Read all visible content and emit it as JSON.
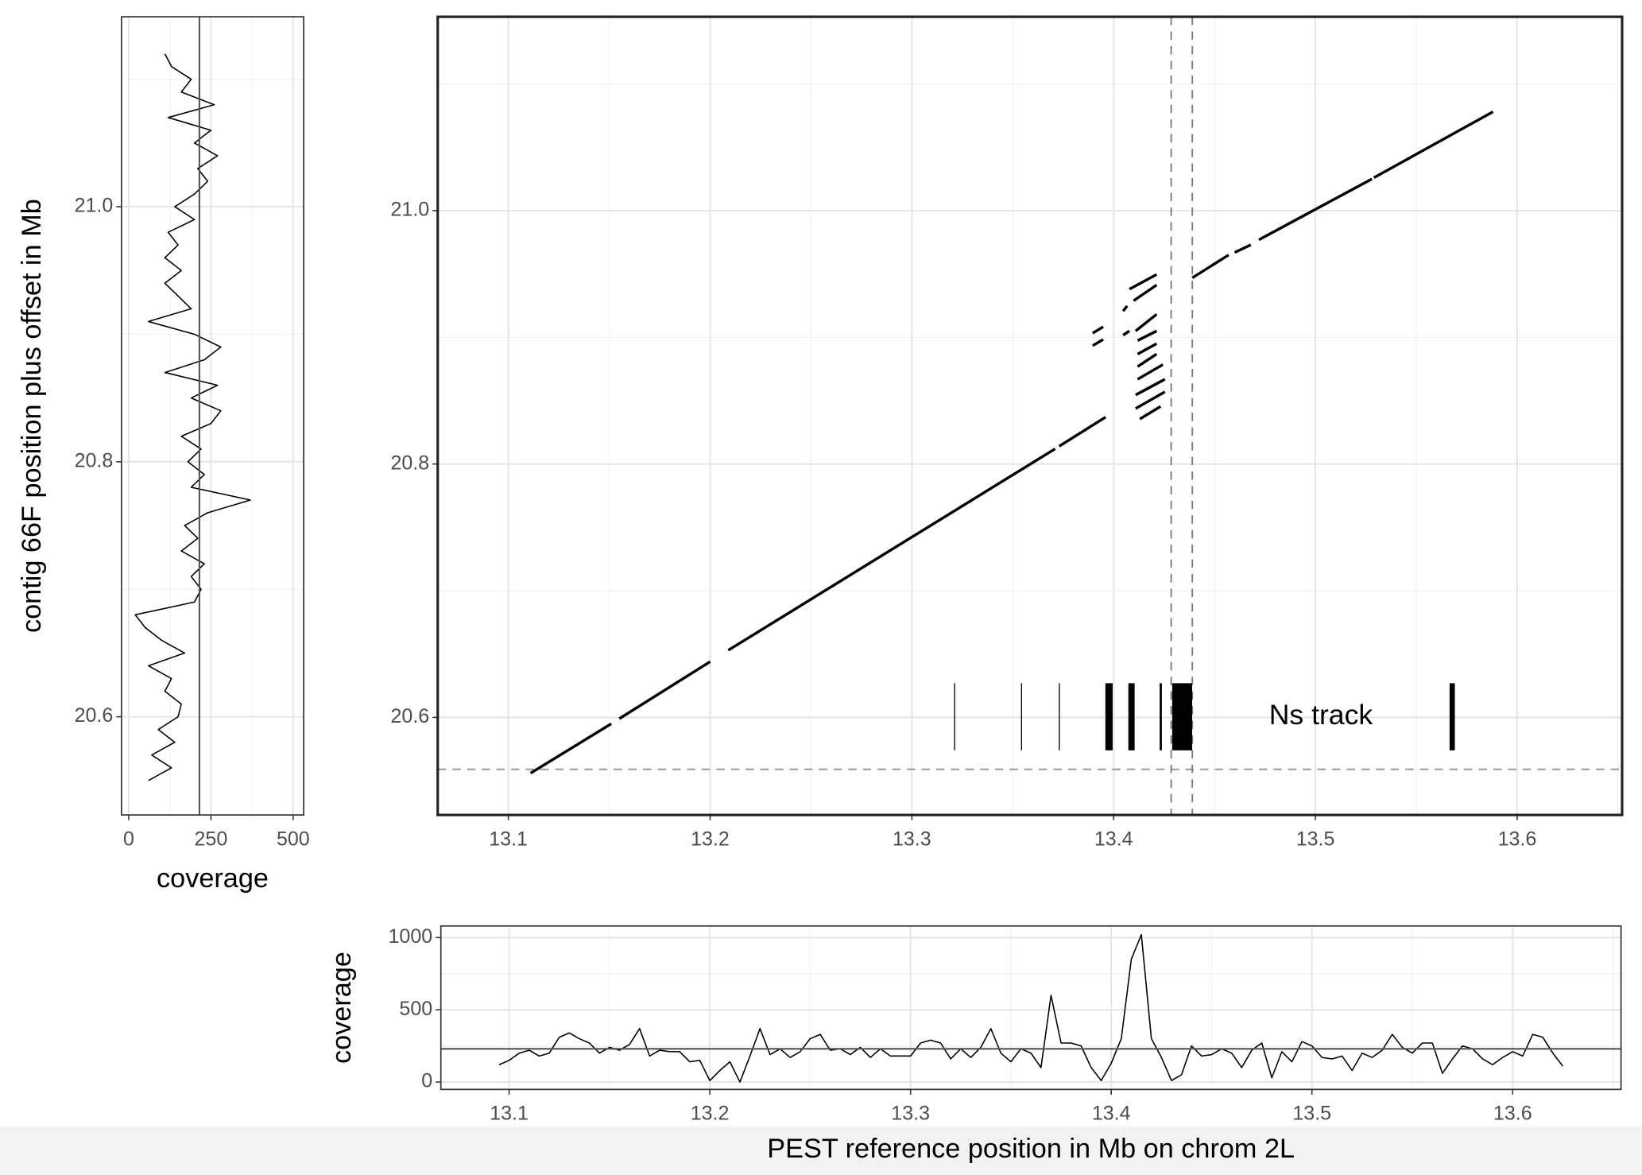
{
  "chart_data": [
    {
      "type": "line",
      "xlabel": "coverage",
      "ylabel": "contig 66F position plus offset in Mb",
      "xlim": [
        -22,
        532
      ],
      "xticks": [
        0,
        250,
        500
      ],
      "ylim": [
        20.523,
        21.149
      ],
      "yticks": [
        20.6,
        20.8,
        {
          "value": 21,
          "label": "21.0"
        }
      ],
      "grid": true,
      "color": "#000000",
      "ref_x": 215,
      "positions": [
        20.55,
        20.56,
        20.57,
        20.58,
        20.59,
        20.6,
        20.61,
        20.62,
        20.63,
        20.64,
        20.65,
        20.66,
        20.67,
        20.68,
        20.69,
        20.7,
        20.71,
        20.72,
        20.73,
        20.74,
        20.75,
        20.76,
        20.77,
        20.78,
        20.79,
        20.8,
        20.81,
        20.82,
        20.83,
        20.84,
        20.85,
        20.86,
        20.87,
        20.88,
        20.89,
        20.9,
        20.91,
        20.92,
        20.93,
        20.94,
        20.95,
        20.96,
        20.97,
        20.98,
        20.99,
        21.0,
        21.01,
        21.02,
        21.03,
        21.04,
        21.05,
        21.06,
        21.07,
        21.08,
        21.09,
        21.1,
        21.11,
        21.12
      ],
      "values": [
        60,
        130,
        70,
        140,
        90,
        150,
        160,
        110,
        130,
        60,
        170,
        100,
        50,
        20,
        200,
        220,
        190,
        230,
        160,
        210,
        170,
        240,
        370,
        190,
        230,
        180,
        220,
        160,
        250,
        280,
        190,
        270,
        110,
        230,
        280,
        200,
        60,
        190,
        150,
        110,
        160,
        110,
        150,
        120,
        200,
        140,
        200,
        240,
        210,
        270,
        200,
        250,
        120,
        260,
        160,
        190,
        130,
        110
      ]
    },
    {
      "type": "segments",
      "xlim": [
        13.065,
        13.652
      ],
      "xticks": [
        13.1,
        13.2,
        13.3,
        13.4,
        13.5,
        13.6
      ],
      "ylim": [
        20.523,
        21.153
      ],
      "yticks": [
        20.6,
        20.8,
        {
          "value": 21,
          "label": "21.0"
        }
      ],
      "grid": true,
      "color": "#000000",
      "ref_x": [
        13.4285,
        13.439
      ],
      "ref_y": [
        20.559
      ],
      "segments": [
        {
          "x": [
            13.111,
            13.151
          ],
          "y": [
            20.556,
            20.595
          ]
        },
        {
          "x": [
            13.155,
            13.2
          ],
          "y": [
            20.599,
            20.644
          ]
        },
        {
          "x": [
            13.209,
            13.371
          ],
          "y": [
            20.653,
            20.812
          ]
        },
        {
          "x": [
            13.373,
            13.396
          ],
          "y": [
            20.814,
            20.837
          ]
        },
        {
          "x": [
            13.3896,
            13.3948
          ],
          "y": [
            20.9033,
            20.9083
          ]
        },
        {
          "x": [
            13.3896,
            13.3948
          ],
          "y": [
            20.8934,
            20.8983
          ]
        },
        {
          "x": [
            13.4047,
            13.4067
          ],
          "y": [
            20.9207,
            20.9248
          ]
        },
        {
          "x": [
            13.4078,
            13.4213
          ],
          "y": [
            20.938,
            20.9496
          ]
        },
        {
          "x": [
            13.4099,
            13.4213
          ],
          "y": [
            20.9289,
            20.9413
          ]
        },
        {
          "x": [
            13.4047,
            13.4078
          ],
          "y": [
            20.9017,
            20.905
          ]
        },
        {
          "x": [
            13.4109,
            13.4213
          ],
          "y": [
            20.905,
            20.9182
          ]
        },
        {
          "x": [
            13.4119,
            13.4213
          ],
          "y": [
            20.8975,
            20.905
          ]
        },
        {
          "x": [
            13.4119,
            13.4213
          ],
          "y": [
            20.8868,
            20.895
          ]
        },
        {
          "x": [
            13.4119,
            13.4213
          ],
          "y": [
            20.8769,
            20.8868
          ]
        },
        {
          "x": [
            13.4119,
            13.4244
          ],
          "y": [
            20.8669,
            20.8785
          ]
        },
        {
          "x": [
            13.4109,
            13.4254
          ],
          "y": [
            20.8545,
            20.8669
          ]
        },
        {
          "x": [
            13.4109,
            13.4254
          ],
          "y": [
            20.8438,
            20.857
          ]
        },
        {
          "x": [
            13.413,
            13.4233
          ],
          "y": [
            20.8355,
            20.8455
          ]
        },
        {
          "x": [
            13.439,
            13.457
          ],
          "y": [
            20.947,
            20.965
          ]
        },
        {
          "x": [
            13.46,
            13.468
          ],
          "y": [
            20.967,
            20.973
          ]
        },
        {
          "x": [
            13.472,
            13.528
          ],
          "y": [
            20.977,
            21.025
          ]
        },
        {
          "x": [
            13.529,
            13.588
          ],
          "y": [
            21.026,
            21.078
          ]
        }
      ],
      "ns_track": {
        "label": "Ns track",
        "y": [
          20.574,
          20.627
        ],
        "intervals": [
          [
            13.3209,
            13.3214
          ],
          [
            13.3541,
            13.3546
          ],
          [
            13.3728,
            13.3733
          ],
          [
            13.3959,
            13.3995
          ],
          [
            13.4073,
            13.4104
          ],
          [
            13.4228,
            13.4239
          ],
          [
            13.429,
            13.4389
          ],
          [
            13.5665,
            13.5691
          ]
        ]
      }
    },
    {
      "type": "line",
      "xlabel": "PEST reference position in Mb on chrom 2L",
      "ylabel": "coverage",
      "xlim": [
        13.066,
        13.654
      ],
      "xticks": [
        13.1,
        13.2,
        13.3,
        13.4,
        13.5,
        13.6
      ],
      "ylim": [
        -51,
        1080
      ],
      "yticks": [
        0,
        500,
        1000
      ],
      "grid": true,
      "color": "#000000",
      "ref_y": 230,
      "x": [
        13.095,
        13.1,
        13.105,
        13.11,
        13.115,
        13.12,
        13.125,
        13.13,
        13.135,
        13.14,
        13.145,
        13.15,
        13.155,
        13.16,
        13.165,
        13.17,
        13.175,
        13.18,
        13.185,
        13.19,
        13.195,
        13.2,
        13.205,
        13.21,
        13.215,
        13.22,
        13.225,
        13.23,
        13.235,
        13.24,
        13.245,
        13.25,
        13.255,
        13.26,
        13.265,
        13.27,
        13.275,
        13.28,
        13.285,
        13.29,
        13.295,
        13.3,
        13.305,
        13.31,
        13.315,
        13.32,
        13.325,
        13.33,
        13.335,
        13.34,
        13.345,
        13.35,
        13.355,
        13.36,
        13.365,
        13.37,
        13.375,
        13.38,
        13.385,
        13.39,
        13.395,
        13.4,
        13.405,
        13.41,
        13.415,
        13.42,
        13.425,
        13.43,
        13.435,
        13.44,
        13.445,
        13.45,
        13.455,
        13.46,
        13.465,
        13.47,
        13.475,
        13.48,
        13.485,
        13.49,
        13.495,
        13.5,
        13.505,
        13.51,
        13.515,
        13.52,
        13.525,
        13.53,
        13.535,
        13.54,
        13.545,
        13.55,
        13.555,
        13.56,
        13.565,
        13.57,
        13.575,
        13.58,
        13.585,
        13.59,
        13.595,
        13.6,
        13.605,
        13.61,
        13.615,
        13.62,
        13.625
      ],
      "values": [
        120,
        150,
        200,
        220,
        180,
        200,
        310,
        340,
        300,
        270,
        200,
        240,
        220,
        260,
        370,
        180,
        220,
        210,
        210,
        140,
        150,
        10,
        80,
        140,
        0,
        180,
        370,
        190,
        230,
        170,
        210,
        300,
        330,
        220,
        230,
        190,
        240,
        170,
        230,
        180,
        180,
        180,
        270,
        290,
        270,
        160,
        230,
        170,
        240,
        370,
        200,
        140,
        230,
        200,
        100,
        600,
        270,
        270,
        250,
        100,
        10,
        130,
        300,
        850,
        1020,
        300,
        170,
        10,
        50,
        250,
        180,
        190,
        230,
        200,
        100,
        220,
        270,
        30,
        210,
        140,
        280,
        250,
        170,
        160,
        180,
        80,
        200,
        170,
        220,
        330,
        240,
        200,
        270,
        270,
        60,
        160,
        250,
        230,
        160,
        120,
        170,
        210,
        180,
        330,
        310,
        200,
        110
      ]
    }
  ]
}
